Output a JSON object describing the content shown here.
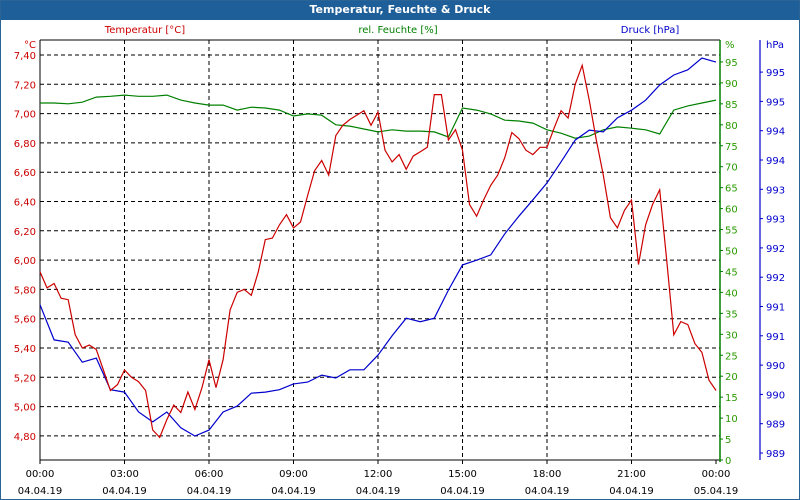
{
  "window": {
    "title": "Temperatur, Feuchte & Druck"
  },
  "chart_data": {
    "type": "line",
    "title": "Temperatur, Feuchte & Druck",
    "colors": {
      "temperature": "#cc0000",
      "humidity": "#008000",
      "pressure": "#0000cc",
      "grid": "#000000"
    },
    "x_axis": {
      "range_hours": [
        0,
        24
      ],
      "ticks": [
        {
          "time": "00:00",
          "date": "04.04.19",
          "hour": 0
        },
        {
          "time": "03:00",
          "date": "04.04.19",
          "hour": 3
        },
        {
          "time": "06:00",
          "date": "04.04.19",
          "hour": 6
        },
        {
          "time": "09:00",
          "date": "04.04.19",
          "hour": 9
        },
        {
          "time": "12:00",
          "date": "04.04.19",
          "hour": 12
        },
        {
          "time": "15:00",
          "date": "04.04.19",
          "hour": 15
        },
        {
          "time": "18:00",
          "date": "04.04.19",
          "hour": 18
        },
        {
          "time": "21:00",
          "date": "04.04.19",
          "hour": 21
        },
        {
          "time": "00:00",
          "date": "05.04.19",
          "hour": 24
        }
      ]
    },
    "axes": {
      "temperature": {
        "label": "Temperatur [°C]",
        "unit": "°C",
        "ylim": [
          4.65,
          7.5
        ],
        "ticks": [
          "4,80",
          "5,00",
          "5,20",
          "5,40",
          "5,60",
          "5,80",
          "6,00",
          "6,20",
          "6,40",
          "6,60",
          "6,80",
          "7,00",
          "7,20",
          "7,40"
        ],
        "tick_values": [
          4.8,
          5.0,
          5.2,
          5.4,
          5.6,
          5.8,
          6.0,
          6.2,
          6.4,
          6.6,
          6.8,
          7.0,
          7.2,
          7.4
        ]
      },
      "humidity": {
        "label": "rel. Feuchte [%]",
        "unit": "%",
        "ylim": [
          0,
          100
        ],
        "ticks": [
          "0",
          "5",
          "10",
          "15",
          "20",
          "25",
          "30",
          "35",
          "40",
          "45",
          "50",
          "55",
          "60",
          "65",
          "70",
          "75",
          "80",
          "85",
          "90",
          "95"
        ],
        "tick_values": [
          0,
          5,
          10,
          15,
          20,
          25,
          30,
          35,
          40,
          45,
          50,
          55,
          60,
          65,
          70,
          75,
          80,
          85,
          90,
          95
        ]
      },
      "pressure": {
        "label": "Druck [hPa]",
        "unit": "hPa",
        "ylim": [
          988.88,
          996.05
        ],
        "ticks": [
          "989",
          "989",
          "990",
          "990",
          "991",
          "991",
          "992",
          "992",
          "993",
          "993",
          "994",
          "994",
          "995",
          "995"
        ],
        "tick_values": [
          989.0,
          989.5,
          990.0,
          990.5,
          991.0,
          991.5,
          992.0,
          992.5,
          993.0,
          993.5,
          994.0,
          994.5,
          995.0,
          995.5
        ]
      }
    },
    "series": [
      {
        "name": "Temperatur [°C]",
        "axis": "temperature",
        "interval_hours": 0.25,
        "values": [
          5.92,
          5.81,
          5.84,
          5.74,
          5.73,
          5.49,
          5.4,
          5.42,
          5.39,
          5.25,
          5.11,
          5.15,
          5.25,
          5.2,
          5.17,
          5.11,
          4.84,
          4.79,
          4.91,
          5.01,
          4.96,
          5.1,
          4.98,
          5.13,
          5.32,
          5.13,
          5.32,
          5.66,
          5.78,
          5.8,
          5.76,
          5.92,
          6.14,
          6.15,
          6.24,
          6.31,
          6.22,
          6.26,
          6.44,
          6.61,
          6.68,
          6.58,
          6.85,
          6.92,
          6.96,
          6.99,
          7.02,
          6.92,
          7.01,
          6.75,
          6.67,
          6.72,
          6.62,
          6.71,
          6.74,
          6.77,
          7.13,
          7.13,
          6.82,
          6.89,
          6.75,
          6.38,
          6.3,
          6.41,
          6.51,
          6.58,
          6.7,
          6.87,
          6.83,
          6.75,
          6.72,
          6.77,
          6.77,
          6.9,
          7.02,
          6.97,
          7.2,
          7.33,
          7.09,
          6.82,
          6.58,
          6.29,
          6.22,
          6.34,
          6.41,
          5.97,
          6.24,
          6.38,
          6.48,
          6.0,
          5.49,
          5.58,
          5.56,
          5.43,
          5.37,
          5.18,
          5.11
        ]
      },
      {
        "name": "rel. Feuchte [%]",
        "axis": "humidity",
        "interval_hours": 0.5,
        "values": [
          85.2,
          85.2,
          85.0,
          85.4,
          86.6,
          86.8,
          87.1,
          86.8,
          86.8,
          87.1,
          85.9,
          85.2,
          84.7,
          84.7,
          83.5,
          84.2,
          84.0,
          83.5,
          82.1,
          82.6,
          82.3,
          80.0,
          79.7,
          79.0,
          78.3,
          78.8,
          78.5,
          78.5,
          78.3,
          77.1,
          84.0,
          83.5,
          82.6,
          81.1,
          80.9,
          80.4,
          78.8,
          78.0,
          76.8,
          77.3,
          78.8,
          79.5,
          79.2,
          78.8,
          77.8,
          83.5,
          84.5,
          85.2,
          85.9
        ]
      },
      {
        "name": "Druck [hPa]",
        "axis": "pressure",
        "interval_hours": 0.5,
        "values": [
          991.53,
          990.93,
          990.89,
          990.55,
          990.62,
          990.08,
          990.04,
          989.7,
          989.53,
          989.7,
          989.43,
          989.29,
          989.39,
          989.7,
          989.8,
          990.02,
          990.04,
          990.08,
          990.18,
          990.21,
          990.33,
          990.28,
          990.42,
          990.42,
          990.67,
          991.0,
          991.3,
          991.24,
          991.3,
          991.78,
          992.21,
          992.29,
          992.38,
          992.74,
          993.04,
          993.32,
          993.61,
          993.97,
          994.34,
          994.51,
          994.48,
          994.72,
          994.85,
          995.02,
          995.28,
          995.45,
          995.54,
          995.74,
          995.67
        ]
      }
    ]
  }
}
